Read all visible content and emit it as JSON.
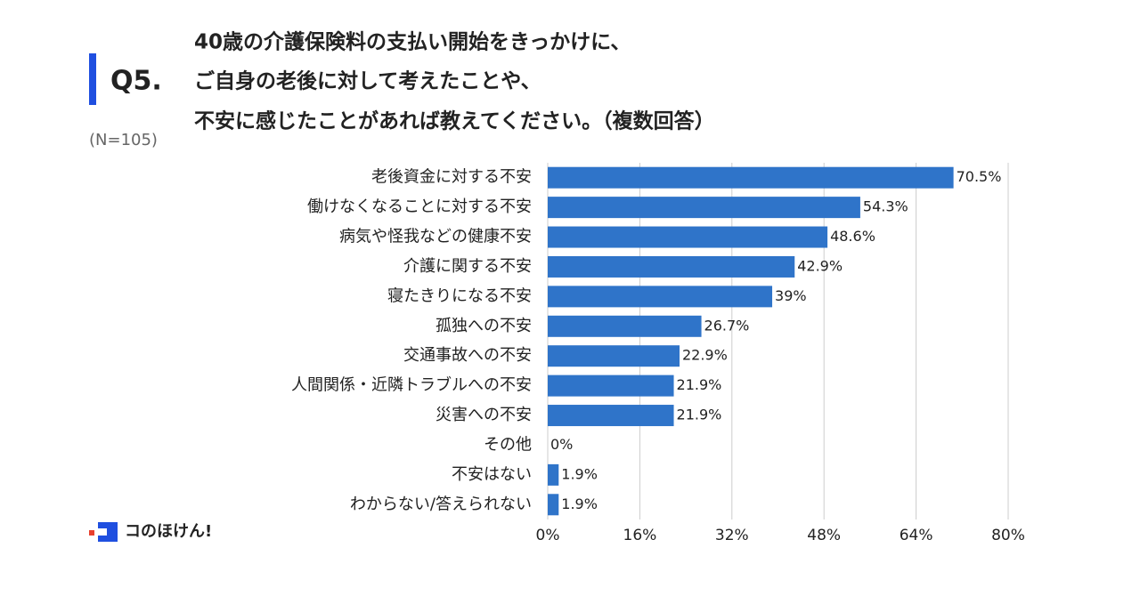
{
  "chart_data": {
    "type": "barh",
    "label": "Q5.",
    "title": [
      "40歳の介護保険料の支払い開始をきっかけに、",
      "ご自身の老後に対して考えたことや、",
      "不安に感じたことがあれば教えてください。（複数回答）"
    ],
    "note": "(N=105)",
    "categories": [
      "老後資金に対する不安",
      "働けなくなることに対する不安",
      "病気や怪我などの健康不安",
      "介護に関する不安",
      "寝たきりになる不安",
      "孤独への不安",
      "交通事故への不安",
      "人間関係・近隣トラブルへの不安",
      "災害への不安",
      "その他",
      "不安はない",
      "わからない/答えられない"
    ],
    "values": [
      70.5,
      54.3,
      48.6,
      42.9,
      39,
      26.7,
      22.9,
      21.9,
      21.9,
      0,
      1.9,
      1.9
    ],
    "value_labels": [
      "70.5%",
      "54.3%",
      "48.6%",
      "42.9%",
      "39%",
      "26.7%",
      "22.9%",
      "21.9%",
      "21.9%",
      "0%",
      "1.9%",
      "1.9%"
    ],
    "color": "#2f74c9",
    "xlim": [
      0,
      80
    ],
    "xticks": [
      {
        "value": 0,
        "label": "0%"
      },
      {
        "value": 16,
        "label": "16%"
      },
      {
        "value": 32,
        "label": "32%"
      },
      {
        "value": 48,
        "label": "48%"
      },
      {
        "value": 64,
        "label": "64%"
      },
      {
        "value": 80,
        "label": "80%"
      }
    ],
    "grid": true
  },
  "brand": "コのほけん!"
}
